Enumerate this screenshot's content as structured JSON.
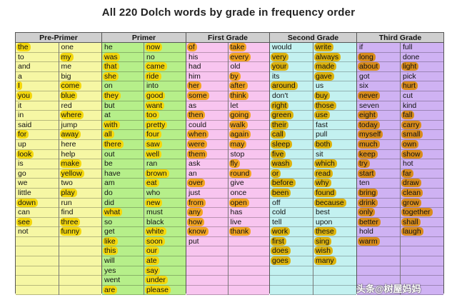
{
  "title": "All 220 Dolch words by grade in frequency order",
  "watermark": "头条@树屋妈妈",
  "grades": [
    {
      "name": "Pre-Primer",
      "columns": [
        [
          [
            "the",
            1
          ],
          [
            "to",
            0
          ],
          [
            "and",
            0
          ],
          [
            "a",
            0
          ],
          [
            "I",
            1
          ],
          [
            "you",
            1
          ],
          [
            "it",
            0
          ],
          [
            "in",
            0
          ],
          [
            "said",
            0
          ],
          [
            "for",
            1
          ],
          [
            "up",
            0
          ],
          [
            "look",
            1
          ],
          [
            "is",
            0
          ],
          [
            "go",
            0
          ],
          [
            "we",
            0
          ],
          [
            "little",
            0
          ],
          [
            "down",
            1
          ],
          [
            "can",
            0
          ],
          [
            "see",
            1
          ],
          [
            "not",
            0
          ]
        ],
        [
          [
            "one",
            0
          ],
          [
            "my",
            1
          ],
          [
            "me",
            0
          ],
          [
            "big",
            0
          ],
          [
            "come",
            1
          ],
          [
            "blue",
            1
          ],
          [
            "red",
            0
          ],
          [
            "where",
            1
          ],
          [
            "jump",
            0
          ],
          [
            "away",
            1
          ],
          [
            "here",
            0
          ],
          [
            "help",
            0
          ],
          [
            "make",
            1
          ],
          [
            "yellow",
            1
          ],
          [
            "two",
            0
          ],
          [
            "play",
            1
          ],
          [
            "run",
            0
          ],
          [
            "find",
            0
          ],
          [
            "three",
            1
          ],
          [
            "funny",
            1
          ]
        ]
      ]
    },
    {
      "name": "Primer",
      "columns": [
        [
          [
            "he",
            0
          ],
          [
            "was",
            1
          ],
          [
            "that",
            1
          ],
          [
            "she",
            1
          ],
          [
            "on",
            0
          ],
          [
            "they",
            1
          ],
          [
            "but",
            0
          ],
          [
            "at",
            0
          ],
          [
            "with",
            1
          ],
          [
            "all",
            1
          ],
          [
            "there",
            1
          ],
          [
            "out",
            0
          ],
          [
            "be",
            0
          ],
          [
            "have",
            0
          ],
          [
            "am",
            0
          ],
          [
            "do",
            0
          ],
          [
            "did",
            0
          ],
          [
            "what",
            1
          ],
          [
            "so",
            0
          ],
          [
            "get",
            0
          ],
          [
            "like",
            1
          ],
          [
            "this",
            1
          ],
          [
            "will",
            0
          ],
          [
            "yes",
            0
          ],
          [
            "went",
            0
          ],
          [
            "are",
            1
          ]
        ],
        [
          [
            "now",
            1
          ],
          [
            "no",
            0
          ],
          [
            "came",
            1
          ],
          [
            "ride",
            1
          ],
          [
            "into",
            0
          ],
          [
            "good",
            1
          ],
          [
            "want",
            1
          ],
          [
            "too",
            1
          ],
          [
            "pretty",
            1
          ],
          [
            "four",
            1
          ],
          [
            "saw",
            1
          ],
          [
            "well",
            1
          ],
          [
            "ran",
            0
          ],
          [
            "brown",
            1
          ],
          [
            "eat",
            1
          ],
          [
            "who",
            0
          ],
          [
            "new",
            1
          ],
          [
            "must",
            0
          ],
          [
            "black",
            0
          ],
          [
            "white",
            1
          ],
          [
            "soon",
            1
          ],
          [
            "our",
            1
          ],
          [
            "ate",
            1
          ],
          [
            "say",
            1
          ],
          [
            "under",
            1
          ],
          [
            "please",
            1
          ]
        ]
      ]
    },
    {
      "name": "First Grade",
      "columns": [
        [
          [
            "of",
            1
          ],
          [
            "his",
            0
          ],
          [
            "had",
            0
          ],
          [
            "him",
            0
          ],
          [
            "her",
            1
          ],
          [
            "some",
            1
          ],
          [
            "as",
            0
          ],
          [
            "then",
            1
          ],
          [
            "could",
            0
          ],
          [
            "when",
            1
          ],
          [
            "were",
            1
          ],
          [
            "them",
            1
          ],
          [
            "ask",
            0
          ],
          [
            "an",
            0
          ],
          [
            "over",
            1
          ],
          [
            "just",
            0
          ],
          [
            "from",
            1
          ],
          [
            "any",
            1
          ],
          [
            "how",
            1
          ],
          [
            "know",
            1
          ],
          [
            "put",
            0
          ]
        ],
        [
          [
            "take",
            1
          ],
          [
            "every",
            1
          ],
          [
            "old",
            0
          ],
          [
            "by",
            1
          ],
          [
            "after",
            1
          ],
          [
            "think",
            1
          ],
          [
            "let",
            0
          ],
          [
            "going",
            1
          ],
          [
            "walk",
            1
          ],
          [
            "again",
            1
          ],
          [
            "may",
            1
          ],
          [
            "stop",
            0
          ],
          [
            "fly",
            1
          ],
          [
            "round",
            1
          ],
          [
            "give",
            0
          ],
          [
            "once",
            0
          ],
          [
            "open",
            1
          ],
          [
            "has",
            0
          ],
          [
            "live",
            0
          ],
          [
            "thank",
            1
          ]
        ]
      ]
    },
    {
      "name": "Second Grade",
      "columns": [
        [
          [
            "would",
            0
          ],
          [
            "very",
            1
          ],
          [
            "your",
            1
          ],
          [
            "its",
            0
          ],
          [
            "around",
            1
          ],
          [
            "don't",
            0
          ],
          [
            "right",
            1
          ],
          [
            "green",
            1
          ],
          [
            "their",
            1
          ],
          [
            "call",
            1
          ],
          [
            "sleep",
            1
          ],
          [
            "five",
            1
          ],
          [
            "wash",
            1
          ],
          [
            "or",
            1
          ],
          [
            "before",
            1
          ],
          [
            "been",
            1
          ],
          [
            "off",
            0
          ],
          [
            "cold",
            0
          ],
          [
            "tell",
            0
          ],
          [
            "work",
            1
          ],
          [
            "first",
            1
          ],
          [
            "does",
            1
          ],
          [
            "goes",
            1
          ]
        ],
        [
          [
            "write",
            1
          ],
          [
            "always",
            1
          ],
          [
            "made",
            1
          ],
          [
            "gave",
            1
          ],
          [
            "us",
            0
          ],
          [
            "buy",
            1
          ],
          [
            "those",
            1
          ],
          [
            "use",
            1
          ],
          [
            "fast",
            0
          ],
          [
            "pull",
            0
          ],
          [
            "both",
            1
          ],
          [
            "sit",
            0
          ],
          [
            "which",
            1
          ],
          [
            "read",
            1
          ],
          [
            "why",
            1
          ],
          [
            "found",
            1
          ],
          [
            "because",
            1
          ],
          [
            "best",
            0
          ],
          [
            "upon",
            0
          ],
          [
            "these",
            1
          ],
          [
            "sing",
            1
          ],
          [
            "wish",
            1
          ],
          [
            "many",
            1
          ]
        ]
      ]
    },
    {
      "name": "Third Grade",
      "columns": [
        [
          [
            "if",
            0
          ],
          [
            "long",
            1
          ],
          [
            "about",
            1
          ],
          [
            "got",
            0
          ],
          [
            "six",
            0
          ],
          [
            "never",
            1
          ],
          [
            "seven",
            0
          ],
          [
            "eight",
            1
          ],
          [
            "today",
            1
          ],
          [
            "myself",
            1
          ],
          [
            "much",
            1
          ],
          [
            "keep",
            1
          ],
          [
            "try",
            1
          ],
          [
            "start",
            1
          ],
          [
            "ten",
            0
          ],
          [
            "bring",
            1
          ],
          [
            "drink",
            1
          ],
          [
            "only",
            1
          ],
          [
            "better",
            1
          ],
          [
            "hold",
            0
          ],
          [
            "warm",
            1
          ]
        ],
        [
          [
            "full",
            0
          ],
          [
            "done",
            0
          ],
          [
            "light",
            1
          ],
          [
            "pick",
            0
          ],
          [
            "hurt",
            1
          ],
          [
            "cut",
            0
          ],
          [
            "kind",
            0
          ],
          [
            "fall",
            1
          ],
          [
            "carry",
            1
          ],
          [
            "small",
            1
          ],
          [
            "own",
            1
          ],
          [
            "show",
            1
          ],
          [
            "hot",
            0
          ],
          [
            "far",
            1
          ],
          [
            "draw",
            1
          ],
          [
            "clean",
            1
          ],
          [
            "grow",
            1
          ],
          [
            "together",
            1
          ],
          [
            "shall",
            1
          ],
          [
            "laugh",
            1
          ]
        ]
      ]
    }
  ]
}
